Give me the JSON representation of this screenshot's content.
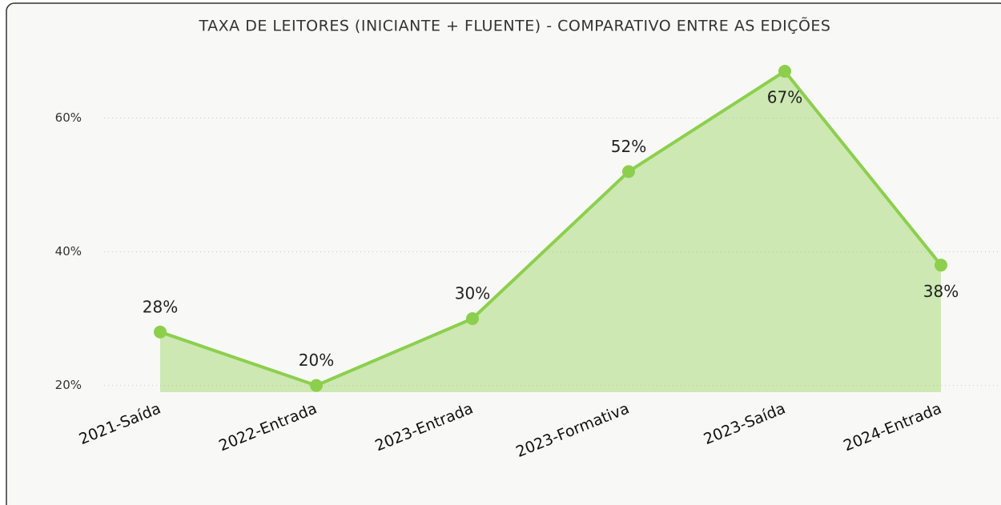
{
  "chart_data": {
    "type": "area",
    "title": "TAXA DE LEITORES (INICIANTE + FLUENTE) - COMPARATIVO ENTRE AS EDIÇÕES",
    "categories": [
      "2021-Saída",
      "2022-Entrada",
      "2023-Entrada",
      "2023-Formativa",
      "2023-Saída",
      "2024-Entrada"
    ],
    "values": [
      28,
      20,
      30,
      52,
      67,
      38
    ],
    "value_labels": [
      "28%",
      "20%",
      "30%",
      "52%",
      "67%",
      "38%"
    ],
    "color": "#8ccf4d",
    "ylim": [
      19,
      70
    ],
    "yticks": [
      {
        "value": 20,
        "label": "20%"
      },
      {
        "value": 40,
        "label": "40%"
      },
      {
        "value": 60,
        "label": "60%"
      }
    ],
    "grid": true
  }
}
